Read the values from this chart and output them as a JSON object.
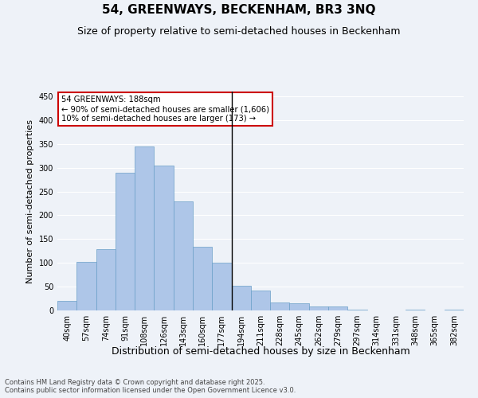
{
  "title": "54, GREENWAYS, BECKENHAM, BR3 3NQ",
  "subtitle": "Size of property relative to semi-detached houses in Beckenham",
  "xlabel": "Distribution of semi-detached houses by size in Beckenham",
  "ylabel": "Number of semi-detached properties",
  "categories": [
    "40sqm",
    "57sqm",
    "74sqm",
    "91sqm",
    "108sqm",
    "126sqm",
    "143sqm",
    "160sqm",
    "177sqm",
    "194sqm",
    "211sqm",
    "228sqm",
    "245sqm",
    "262sqm",
    "279sqm",
    "297sqm",
    "314sqm",
    "331sqm",
    "348sqm",
    "365sqm",
    "382sqm"
  ],
  "values": [
    20,
    102,
    128,
    290,
    345,
    305,
    230,
    133,
    100,
    52,
    41,
    16,
    15,
    8,
    8,
    2,
    0,
    0,
    2,
    0,
    2
  ],
  "bar_color": "#aec6e8",
  "bar_edge_color": "#6a9fc8",
  "vline_color": "#000000",
  "vline_x": 8.5,
  "annotation_title": "54 GREENWAYS: 188sqm",
  "annotation_line2": "← 90% of semi-detached houses are smaller (1,606)",
  "annotation_line3": "10% of semi-detached houses are larger (173) →",
  "annotation_box_color": "#cc0000",
  "annotation_bg": "#ffffff",
  "ylim": [
    0,
    460
  ],
  "yticks": [
    0,
    50,
    100,
    150,
    200,
    250,
    300,
    350,
    400,
    450
  ],
  "background_color": "#eef2f8",
  "grid_color": "#ffffff",
  "footer_line1": "Contains HM Land Registry data © Crown copyright and database right 2025.",
  "footer_line2": "Contains public sector information licensed under the Open Government Licence v3.0.",
  "title_fontsize": 11,
  "subtitle_fontsize": 9,
  "tick_fontsize": 7,
  "ylabel_fontsize": 8,
  "xlabel_fontsize": 9
}
